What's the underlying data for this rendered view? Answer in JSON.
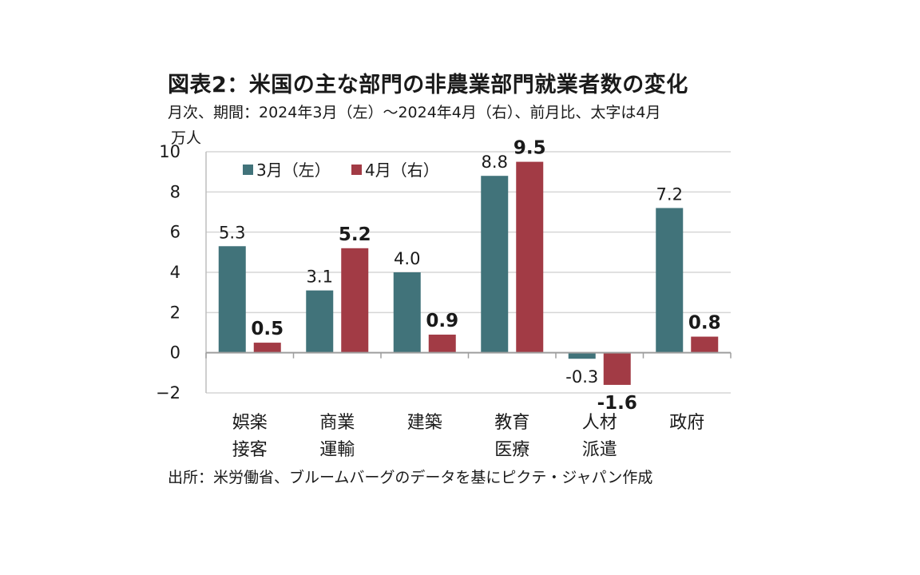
{
  "title": "図表2：米国の主な部門の非農業部門就業者数の変化",
  "subtitle": "月次、期間：2024年3月（左）～2024年4月（右）、前月比、太字は4月",
  "unit": "万人",
  "source": "出所：米労働省、ブルームバーグのデータを基にピクテ・ジャパン作成",
  "chart_data": {
    "type": "bar",
    "categories": [
      [
        "娯楽",
        "接客"
      ],
      [
        "商業",
        "運輸"
      ],
      [
        "建築"
      ],
      [
        "教育",
        "医療"
      ],
      [
        "人材",
        "派遣"
      ],
      [
        "政府"
      ]
    ],
    "series": [
      {
        "name": "3月（左）",
        "color": "#41737a",
        "values": [
          5.3,
          3.1,
          4.0,
          8.8,
          -0.3,
          7.2
        ],
        "labels": [
          "5.3",
          "3.1",
          "4.0",
          "8.8",
          "-0.3",
          "7.2"
        ]
      },
      {
        "name": "4月（右）",
        "color": "#a23b45",
        "values": [
          0.5,
          5.2,
          0.9,
          9.5,
          -1.6,
          0.8
        ],
        "labels": [
          "0.5",
          "5.2",
          "0.9",
          "9.5",
          "-1.6",
          "0.8"
        ]
      }
    ],
    "ylim": [
      -2,
      10
    ],
    "yticks": [
      10,
      8,
      6,
      4,
      2,
      0,
      -2
    ],
    "ytick_labels": [
      "10",
      "8",
      "6",
      "4",
      "2",
      "0",
      "−2"
    ],
    "grid": true,
    "legend_position": "top-left"
  }
}
